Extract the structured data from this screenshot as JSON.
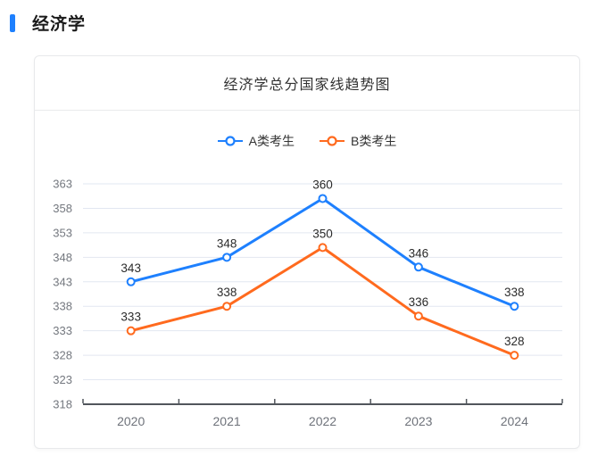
{
  "header": {
    "title": "经济学"
  },
  "chart_data": {
    "type": "line",
    "title": "经济学总分国家线趋势图",
    "categories": [
      "2020",
      "2021",
      "2022",
      "2023",
      "2024"
    ],
    "series": [
      {
        "name": "A类考生",
        "color": "#1e80fe",
        "values": [
          343,
          348,
          360,
          346,
          338
        ]
      },
      {
        "name": "B类考生",
        "color": "#ff6a1e",
        "values": [
          333,
          338,
          350,
          336,
          328
        ]
      }
    ],
    "ylim": [
      318,
      363
    ],
    "ytick_step": 5,
    "grid": true,
    "legend_position": "top",
    "data_labels": true,
    "xlabel": "",
    "ylabel": ""
  },
  "colors": {
    "accent": "#1e80fe",
    "grid_line": "#e2e7f1",
    "axis_line": "#51565c",
    "axis_label": "#74787f",
    "category_label": "#6e727a",
    "data_label": "#2b2b2b",
    "card_border": "#e8e9eb"
  }
}
